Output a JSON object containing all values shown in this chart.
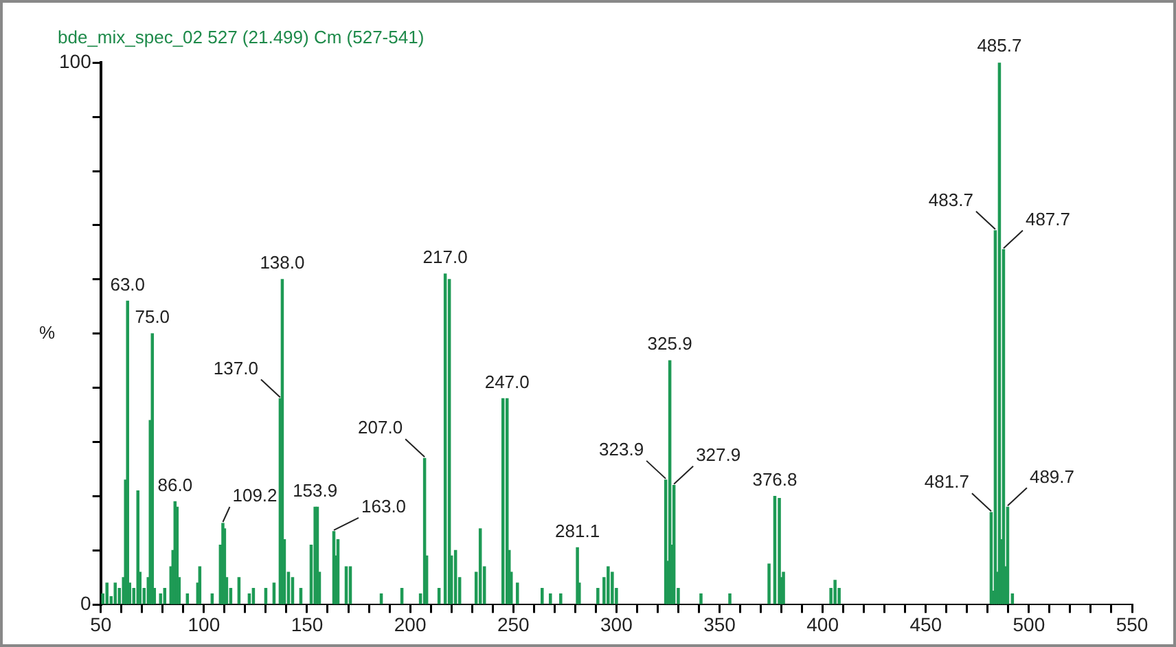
{
  "chart_data": {
    "type": "bar",
    "title": "bde_mix_spec_02 527 (21.499) Cm (527-541)",
    "ylabel": "%",
    "x": [
      51,
      53,
      55,
      57,
      59,
      61,
      62,
      63,
      64,
      66,
      68,
      69,
      71,
      73,
      74,
      75,
      76,
      79,
      81,
      84,
      85,
      86,
      87,
      88,
      92,
      97,
      98,
      104,
      108,
      109.2,
      110,
      111,
      113,
      117,
      122,
      124,
      130,
      134,
      137,
      138,
      139,
      141,
      143,
      147,
      152,
      153.9,
      155,
      156,
      163,
      164,
      165,
      169,
      171,
      186,
      196,
      205,
      207,
      208,
      214,
      217,
      219,
      220,
      222,
      224,
      232,
      234,
      236,
      245,
      247,
      248,
      249,
      252,
      264,
      268,
      273,
      281.1,
      282,
      291,
      294,
      296,
      298,
      300,
      323.9,
      324.9,
      325.9,
      326.9,
      327.9,
      330,
      341,
      355,
      374,
      376.8,
      379,
      380,
      381,
      404,
      406,
      408,
      481.7,
      482.7,
      483.7,
      484.7,
      485.7,
      486.7,
      487.7,
      488.7,
      489.7,
      492
    ],
    "values": [
      2,
      4,
      1.5,
      4,
      3,
      5,
      23,
      56,
      4,
      3,
      21,
      6,
      3,
      5,
      34,
      50,
      3,
      2,
      3,
      7,
      10,
      19,
      18,
      5,
      2,
      4,
      7,
      2,
      11,
      15,
      14,
      5,
      3,
      5,
      2,
      3,
      3,
      4,
      38,
      60,
      12,
      6,
      5,
      3,
      11,
      18,
      18,
      6,
      13.5,
      9,
      12,
      7,
      7,
      2,
      3,
      2,
      27,
      9,
      3,
      61,
      60,
      9,
      10,
      5,
      6,
      14,
      7,
      38,
      38,
      10,
      6,
      4,
      3,
      2,
      2,
      10.5,
      4,
      3,
      5,
      7,
      6,
      3,
      23,
      8,
      45,
      11,
      22,
      3,
      2,
      2,
      7.5,
      20,
      19.6,
      5,
      6,
      3,
      4.5,
      3,
      17,
      2.5,
      69,
      6,
      100,
      12,
      65.5,
      7,
      18,
      2
    ],
    "color": "#1e9a55",
    "xlim": [
      50,
      550
    ],
    "xticks": [
      50,
      {
        "value": 60,
        "label": null
      },
      {
        "value": 70,
        "label": null
      },
      {
        "value": 80,
        "label": null
      },
      {
        "value": 90,
        "label": null
      },
      100,
      {
        "value": 110,
        "label": null
      },
      {
        "value": 120,
        "label": null
      },
      {
        "value": 130,
        "label": null
      },
      {
        "value": 140,
        "label": null
      },
      150,
      {
        "value": 160,
        "label": null
      },
      {
        "value": 170,
        "label": null
      },
      {
        "value": 180,
        "label": null
      },
      {
        "value": 190,
        "label": null
      },
      200,
      {
        "value": 210,
        "label": null
      },
      {
        "value": 220,
        "label": null
      },
      {
        "value": 230,
        "label": null
      },
      {
        "value": 240,
        "label": null
      },
      250,
      {
        "value": 260,
        "label": null
      },
      {
        "value": 270,
        "label": null
      },
      {
        "value": 280,
        "label": null
      },
      {
        "value": 290,
        "label": null
      },
      300,
      {
        "value": 310,
        "label": null
      },
      {
        "value": 320,
        "label": null
      },
      {
        "value": 330,
        "label": null
      },
      {
        "value": 340,
        "label": null
      },
      350,
      {
        "value": 360,
        "label": null
      },
      {
        "value": 370,
        "label": null
      },
      {
        "value": 380,
        "label": null
      },
      {
        "value": 390,
        "label": null
      },
      400,
      {
        "value": 410,
        "label": null
      },
      {
        "value": 420,
        "label": null
      },
      {
        "value": 430,
        "label": null
      },
      {
        "value": 440,
        "label": null
      },
      450,
      {
        "value": 460,
        "label": null
      },
      {
        "value": 470,
        "label": null
      },
      {
        "value": 480,
        "label": null
      },
      {
        "value": 490,
        "label": null
      },
      500,
      {
        "value": 510,
        "label": null
      },
      {
        "value": 520,
        "label": null
      },
      {
        "value": 530,
        "label": null
      },
      {
        "value": 540,
        "label": null
      },
      550
    ],
    "ylim": [
      0,
      100
    ],
    "yticks": [
      0,
      {
        "value": 10,
        "label": null
      },
      {
        "value": 20,
        "label": null
      },
      {
        "value": 30,
        "label": null
      },
      {
        "value": 40,
        "label": null
      },
      {
        "value": 50,
        "label": null
      },
      {
        "value": 60,
        "label": null
      },
      {
        "value": 70,
        "label": null
      },
      {
        "value": 80,
        "label": null
      },
      {
        "value": 90,
        "label": null
      },
      100
    ],
    "grid": false,
    "legend": false,
    "annotations": [
      {
        "text": "63.0",
        "x": 63,
        "y": 56
      },
      {
        "text": "75.0",
        "x": 75,
        "y": 50
      },
      {
        "text": "86.0",
        "x": 86,
        "y": 19
      },
      {
        "text": "109.2",
        "x": 109.2,
        "y": 15
      },
      {
        "text": "137.0",
        "x": 137,
        "y": 38
      },
      {
        "text": "138.0",
        "x": 138,
        "y": 60
      },
      {
        "text": "153.9",
        "x": 153.9,
        "y": 18
      },
      {
        "text": "163.0",
        "x": 163,
        "y": 13.5
      },
      {
        "text": "207.0",
        "x": 207,
        "y": 27
      },
      {
        "text": "217.0",
        "x": 217,
        "y": 61
      },
      {
        "text": "247.0",
        "x": 247,
        "y": 38
      },
      {
        "text": "281.1",
        "x": 281.1,
        "y": 10.5
      },
      {
        "text": "323.9",
        "x": 323.9,
        "y": 23
      },
      {
        "text": "325.9",
        "x": 325.9,
        "y": 45
      },
      {
        "text": "327.9",
        "x": 327.9,
        "y": 22
      },
      {
        "text": "376.8",
        "x": 376.8,
        "y": 20
      },
      {
        "text": "481.7",
        "x": 481.7,
        "y": 17
      },
      {
        "text": "483.7",
        "x": 483.7,
        "y": 69
      },
      {
        "text": "485.7",
        "x": 485.7,
        "y": 100
      },
      {
        "text": "487.7",
        "x": 487.7,
        "y": 65.5
      },
      {
        "text": "489.7",
        "x": 489.7,
        "y": 18
      }
    ]
  }
}
